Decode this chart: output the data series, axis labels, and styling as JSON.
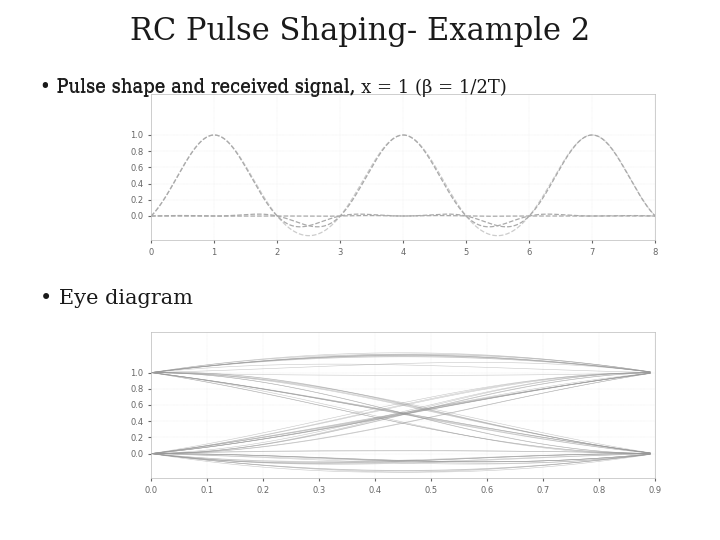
{
  "title": "RC Pulse Shaping- Example 2",
  "bullet1": "Pulse shape and received signal, x = 1 (β = 1/2T)",
  "bullet2": "Eye diagram",
  "background_color": "#ffffff",
  "text_color": "#1a1a1a",
  "title_fontsize": 22,
  "bullet_fontsize": 13,
  "plot1_xlim": [
    0,
    8
  ],
  "plot1_ylim": [
    -0.3,
    1.5
  ],
  "plot1_xticks": [
    0,
    1,
    2,
    3,
    4,
    5,
    6,
    7,
    8
  ],
  "plot1_yticks": [
    0,
    0.2,
    0.4,
    0.6,
    0.8,
    1.0
  ],
  "plot2_xlim": [
    0,
    0.9
  ],
  "plot2_ylim": [
    -0.3,
    1.5
  ],
  "plot2_xticks": [
    0,
    0.1,
    0.2,
    0.3,
    0.4,
    0.5,
    0.6,
    0.7,
    0.8,
    0.9
  ],
  "plot2_yticks": [
    0,
    0.2,
    0.4,
    0.6,
    0.8,
    1.0
  ],
  "line_color": "#aaaaaa",
  "beta": 0.5,
  "T": 1.0
}
